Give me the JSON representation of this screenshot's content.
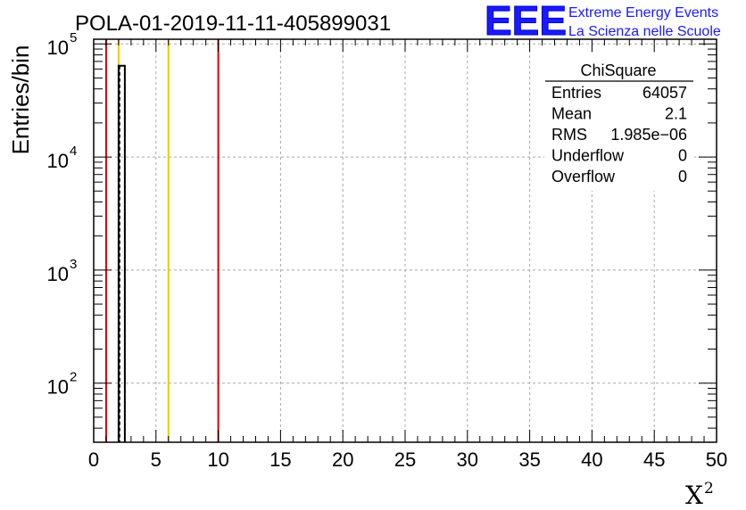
{
  "chart_data": {
    "type": "histogram",
    "title": "POLA-01-2019-11-11-405899031",
    "xlabel": "X",
    "xlabel_superscript": "2",
    "ylabel": "Entries/bin",
    "xlim": [
      0,
      50
    ],
    "ylim": [
      30,
      110000
    ],
    "y_scale": "log",
    "grid": true,
    "x_ticks": [
      0,
      5,
      10,
      15,
      20,
      25,
      30,
      35,
      40,
      45,
      50
    ],
    "x_tick_labels": [
      "0",
      "5",
      "10",
      "15",
      "20",
      "25",
      "30",
      "35",
      "40",
      "45",
      "50"
    ],
    "y_ticks": [
      {
        "value": 100,
        "base": "10",
        "exp": "2"
      },
      {
        "value": 1000,
        "base": "10",
        "exp": "3"
      },
      {
        "value": 10000,
        "base": "10",
        "exp": "4"
      },
      {
        "value": 100000,
        "base": "10",
        "exp": "5"
      }
    ],
    "bins": [
      {
        "x0": 2.0,
        "x1": 2.5,
        "count": 64057
      }
    ],
    "reference_lines": [
      {
        "x": 1,
        "color": "#dd0000"
      },
      {
        "x": 2,
        "color": "#f2c800"
      },
      {
        "x": 6,
        "color": "#f2c800"
      },
      {
        "x": 10,
        "color": "#dd0000"
      }
    ],
    "mean_marker_x": 2.1
  },
  "stats": {
    "title": "ChiSquare",
    "rows": [
      {
        "label": "Entries",
        "value": "64057"
      },
      {
        "label": "Mean",
        "value": "2.1"
      },
      {
        "label": "RMS",
        "value": "1.985e−06"
      },
      {
        "label": "Underflow",
        "value": "0"
      },
      {
        "label": "Overflow",
        "value": "0"
      }
    ]
  },
  "logo": {
    "mark": "EEE",
    "line1": "Extreme Energy Events",
    "line2": "La Scienza nelle Scuole"
  },
  "colors": {
    "red_line": "#dd0000",
    "yellow_line": "#f2c800",
    "logo_blue": "#1a1aff"
  }
}
